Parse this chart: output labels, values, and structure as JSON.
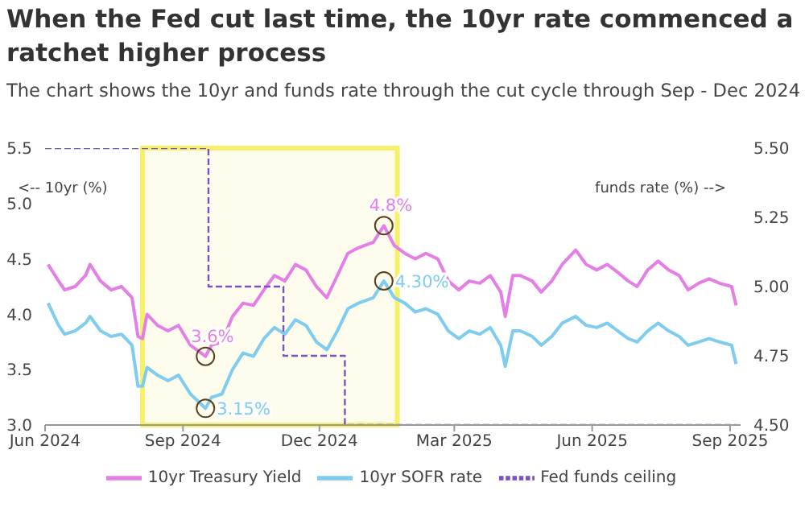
{
  "chart_data": {
    "type": "line",
    "title": "When the Fed cut last time, the 10yr rate commenced a ratchet higher process",
    "subtitle": "The chart shows the 10yr and funds rate through the cut cycle through Sep - Dec 2024",
    "ylabel": "<-- 10yr (%)",
    "y2label": "funds rate (%) -->",
    "x": [
      "2024-06-03",
      "2024-06-10",
      "2024-06-14",
      "2024-06-21",
      "2024-06-28",
      "2024-07-01",
      "2024-07-08",
      "2024-07-15",
      "2024-07-22",
      "2024-07-29",
      "2024-08-02",
      "2024-08-05",
      "2024-08-08",
      "2024-08-15",
      "2024-08-22",
      "2024-08-29",
      "2024-09-06",
      "2024-09-16",
      "2024-09-20",
      "2024-09-27",
      "2024-10-04",
      "2024-10-11",
      "2024-10-18",
      "2024-10-25",
      "2024-11-01",
      "2024-11-08",
      "2024-11-15",
      "2024-11-22",
      "2024-11-29",
      "2024-12-06",
      "2024-12-13",
      "2024-12-20",
      "2024-12-27",
      "2025-01-06",
      "2025-01-13",
      "2025-01-20",
      "2025-01-27",
      "2025-02-03",
      "2025-02-10",
      "2025-02-18",
      "2025-02-25",
      "2025-03-04",
      "2025-03-11",
      "2025-03-18",
      "2025-03-25",
      "2025-04-01",
      "2025-04-04",
      "2025-04-09",
      "2025-04-14",
      "2025-04-22",
      "2025-04-28",
      "2025-05-05",
      "2025-05-12",
      "2025-05-21",
      "2025-05-28",
      "2025-06-04",
      "2025-06-11",
      "2025-06-18",
      "2025-06-25",
      "2025-07-01",
      "2025-07-08",
      "2025-07-15",
      "2025-07-22",
      "2025-07-29",
      "2025-08-04",
      "2025-08-11",
      "2025-08-18",
      "2025-08-25",
      "2025-09-02",
      "2025-09-05"
    ],
    "series": [
      {
        "name": "10yr Treasury Yield",
        "color": "#e47fe6",
        "values": [
          4.45,
          4.3,
          4.22,
          4.25,
          4.35,
          4.45,
          4.3,
          4.22,
          4.25,
          4.15,
          3.8,
          3.78,
          4.0,
          3.9,
          3.85,
          3.9,
          3.72,
          3.62,
          3.72,
          3.75,
          3.98,
          4.1,
          4.08,
          4.22,
          4.35,
          4.3,
          4.45,
          4.4,
          4.25,
          4.15,
          4.35,
          4.55,
          4.6,
          4.65,
          4.8,
          4.62,
          4.55,
          4.5,
          4.55,
          4.5,
          4.3,
          4.22,
          4.3,
          4.28,
          4.35,
          4.2,
          3.98,
          4.35,
          4.35,
          4.3,
          4.2,
          4.3,
          4.45,
          4.58,
          4.45,
          4.4,
          4.45,
          4.38,
          4.3,
          4.25,
          4.4,
          4.48,
          4.4,
          4.35,
          4.22,
          4.28,
          4.32,
          4.28,
          4.25,
          4.08
        ]
      },
      {
        "name": "10yr SOFR rate",
        "color": "#7ecdef",
        "values": [
          4.1,
          3.9,
          3.82,
          3.85,
          3.92,
          3.98,
          3.85,
          3.8,
          3.82,
          3.72,
          3.35,
          3.35,
          3.52,
          3.45,
          3.4,
          3.45,
          3.28,
          3.15,
          3.25,
          3.28,
          3.5,
          3.65,
          3.62,
          3.78,
          3.88,
          3.82,
          3.95,
          3.9,
          3.75,
          3.68,
          3.85,
          4.05,
          4.1,
          4.15,
          4.3,
          4.15,
          4.1,
          4.02,
          4.05,
          4.0,
          3.85,
          3.78,
          3.85,
          3.82,
          3.88,
          3.72,
          3.53,
          3.85,
          3.85,
          3.8,
          3.72,
          3.8,
          3.92,
          3.98,
          3.9,
          3.88,
          3.92,
          3.85,
          3.78,
          3.75,
          3.85,
          3.92,
          3.85,
          3.8,
          3.72,
          3.75,
          3.78,
          3.75,
          3.72,
          3.55
        ]
      },
      {
        "name": "Fed funds ceiling",
        "type": "step",
        "axis": "y2",
        "line_style": "dashed",
        "color": "#7b52c4",
        "x": [
          "2024-06-01",
          "2024-09-18",
          "2024-11-07",
          "2024-12-18",
          "2025-09-05"
        ],
        "values": [
          5.5,
          5.0,
          4.75,
          4.5,
          4.5
        ]
      }
    ],
    "xlim": [
      "2024-06-01",
      "2025-09-08"
    ],
    "xticks": [
      {
        "value": "2024-06-01",
        "label": "Jun 2024"
      },
      {
        "value": "2024-09-01",
        "label": "Sep 2024"
      },
      {
        "value": "2024-12-01",
        "label": "Dec 2024"
      },
      {
        "value": "2025-03-01",
        "label": "Mar 2025"
      },
      {
        "value": "2025-06-01",
        "label": "Jun 2025"
      },
      {
        "value": "2025-09-01",
        "label": "Sep 2025"
      }
    ],
    "ylim": [
      3,
      5.5
    ],
    "yticks": [
      {
        "value": 3,
        "label": "3.0"
      },
      3.5,
      {
        "value": 4,
        "label": "4.0"
      },
      4.5,
      {
        "value": 5,
        "label": "5.0"
      },
      5.5
    ],
    "y2lim": [
      4.5,
      5.5
    ],
    "y2ticks": [
      {
        "value": 4.5,
        "label": "4.50"
      },
      {
        "value": 4.75,
        "label": "4.75"
      },
      {
        "value": 5,
        "label": "5.00"
      },
      {
        "value": 5.25,
        "label": "5.25"
      },
      {
        "value": 5.5,
        "label": "5.50"
      }
    ],
    "bands": [
      {
        "axis": "x",
        "from": "2024-08-05",
        "to": "2025-01-22",
        "color": "#f7f06a"
      }
    ],
    "annotations": [
      {
        "text": "3.6%",
        "x": "2024-09-16",
        "y": 3.62
      },
      {
        "text": "3.15%",
        "x": "2024-09-16",
        "y": 3.15
      },
      {
        "text": "4.8%",
        "x": "2025-01-13",
        "y": 4.8
      },
      {
        "text": "4.30%",
        "x": "2025-01-13",
        "y": 4.3
      }
    ],
    "legend": "bottom"
  }
}
